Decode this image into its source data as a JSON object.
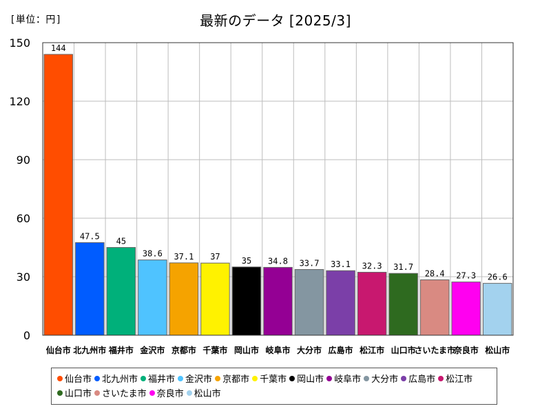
{
  "unit_label": "[単位：円]",
  "chart_data": {
    "type": "bar",
    "title": "最新のデータ [2025/3]",
    "xlabel": "",
    "ylabel": "",
    "ylim": [
      0,
      150
    ],
    "yticks": [
      0,
      30,
      60,
      90,
      120,
      150
    ],
    "grid": true,
    "legend_position": "bottom",
    "categories": [
      "仙台市",
      "北九州市",
      "福井市",
      "金沢市",
      "京都市",
      "千葉市",
      "岡山市",
      "岐阜市",
      "大分市",
      "広島市",
      "松江市",
      "山口市",
      "さいたま市",
      "奈良市",
      "松山市"
    ],
    "values": [
      144,
      47.5,
      45,
      38.6,
      37.1,
      37,
      35,
      34.8,
      33.7,
      33.1,
      32.3,
      31.7,
      28.4,
      27.3,
      26.6
    ],
    "value_labels": [
      "144",
      "47.5",
      "45",
      "38.6",
      "37.1",
      "37",
      "35",
      "34.8",
      "33.7",
      "33.1",
      "32.3",
      "31.7",
      "28.4",
      "27.3",
      "26.6"
    ],
    "colors": [
      "#ff4d00",
      "#005cff",
      "#00b07a",
      "#4fc3ff",
      "#f5a300",
      "#fff200",
      "#000000",
      "#940094",
      "#8496a1",
      "#7b3fa8",
      "#c8186f",
      "#2e6a1f",
      "#d98a82",
      "#ff00f0",
      "#a3d2ee"
    ]
  }
}
